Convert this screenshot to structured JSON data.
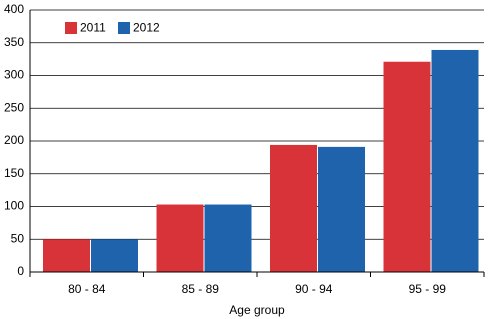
{
  "chart_data": {
    "type": "bar",
    "x_label": "Age group",
    "categories": [
      "80 - 84",
      "85 - 89",
      "90 - 94",
      "95 - 99"
    ],
    "series": [
      {
        "name": "2011",
        "color": "#d9333a",
        "values": [
          50,
          103,
          194,
          321
        ]
      },
      {
        "name": "2012",
        "color": "#1f63ad",
        "values": [
          50,
          103,
          191,
          339
        ]
      }
    ],
    "ylim": [
      0,
      400
    ],
    "yticks": [
      0,
      50,
      100,
      150,
      200,
      250,
      300,
      350,
      400
    ],
    "grid": true,
    "legend": "top-left"
  }
}
